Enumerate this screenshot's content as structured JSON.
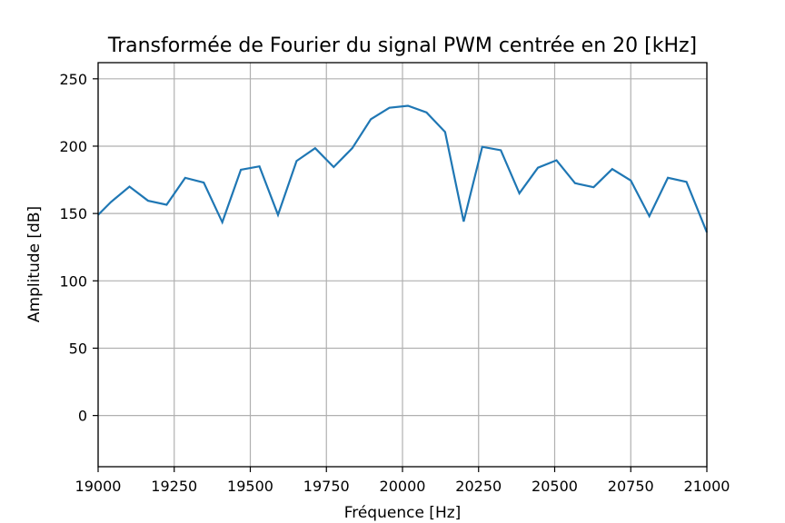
{
  "chart_data": {
    "type": "line",
    "title": "Transformée de Fourier du signal PWM centrée en 20 [kHz]",
    "xlabel": "Fréquence [Hz]",
    "ylabel": "Amplitude [dB]",
    "xlim": [
      19000,
      21000
    ],
    "ylim": [
      -38,
      262
    ],
    "xticks": [
      19000,
      19250,
      19500,
      19750,
      20000,
      20250,
      20500,
      20750,
      21000
    ],
    "yticks": [
      0,
      50,
      100,
      150,
      200,
      250
    ],
    "grid": true,
    "colors": {
      "line": "#1f77b4"
    },
    "series": [
      {
        "x": [
          19000,
          19042,
          19103,
          19164,
          19225,
          19286,
          19347,
          19408,
          19469,
          19530,
          19591,
          19652,
          19713,
          19774,
          19835,
          19896,
          19957,
          20018,
          20079,
          20140,
          20201,
          20262,
          20323,
          20384,
          20445,
          20506,
          20567,
          20628,
          20689,
          20750,
          20811,
          20872,
          20933,
          21000
        ],
        "values": [
          149,
          158.5,
          170,
          159.5,
          156.5,
          176.5,
          173,
          143.5,
          182.5,
          185,
          149,
          189,
          198.5,
          184.5,
          198.5,
          220,
          228.5,
          230,
          225,
          210.5,
          144,
          199.5,
          197,
          165,
          184,
          189.5,
          172.5,
          169.5,
          183,
          174.5,
          148,
          176.5,
          173.5,
          136
        ]
      }
    ]
  }
}
